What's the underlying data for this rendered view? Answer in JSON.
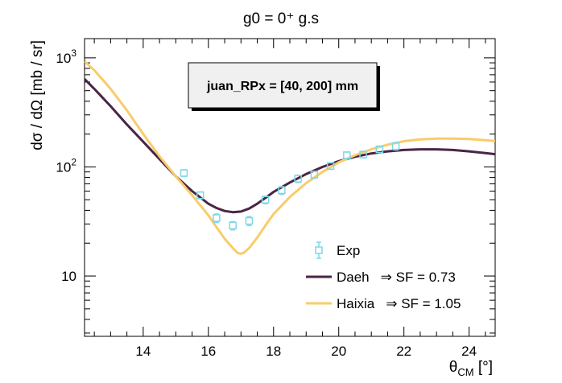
{
  "chart_data": {
    "type": "scatter",
    "title": "g0 = 0⁺ g.s",
    "xlabel": "θ",
    "xlabel_sub": "CM",
    "xlabel_unit": " [°]",
    "ylabel": "dσ / dΩ [mb / sr]",
    "xlim": [
      12.2,
      24.8
    ],
    "ylim": [
      2.8,
      1500
    ],
    "yscale": "log",
    "x_ticks": [
      14,
      16,
      18,
      20,
      22,
      24
    ],
    "y_ticks": [
      10,
      100,
      1000
    ],
    "y_tick_labels": [
      "10",
      "10",
      "10"
    ],
    "y_tick_exponents": [
      "",
      "2",
      "3"
    ],
    "grid": false,
    "legend_position": "bottom-right",
    "annotation": "juan_RPx = [40, 200] mm",
    "series": [
      {
        "name": "Exp",
        "kind": "points",
        "color": "#7fd7e8",
        "x": [
          15.25,
          15.75,
          16.25,
          16.75,
          17.25,
          17.75,
          18.25,
          18.75,
          19.25,
          19.75,
          20.25,
          20.75,
          21.25,
          21.75
        ],
        "y": [
          88,
          55,
          34,
          29,
          32,
          50,
          61,
          78,
          85,
          102,
          128,
          130,
          145,
          155
        ],
        "err": [
          6,
          4,
          3,
          2.5,
          3,
          4,
          5,
          6,
          6,
          7,
          9,
          9,
          10,
          12
        ]
      },
      {
        "name": "Daeh",
        "label_suffix": "⇒ SF = 0.73",
        "kind": "line",
        "color": "#4a2545",
        "x": [
          12.2,
          12.5,
          13,
          13.5,
          14,
          14.5,
          15,
          15.5,
          16,
          16.25,
          16.5,
          16.75,
          17,
          17.25,
          17.5,
          17.75,
          18,
          18.5,
          19,
          19.5,
          20,
          20.5,
          21,
          21.5,
          22,
          22.5,
          23,
          23.5,
          24,
          24.5,
          24.8
        ],
        "y": [
          640,
          520,
          360,
          245,
          170,
          118,
          82,
          60,
          46,
          42,
          39.5,
          38.5,
          39,
          41.5,
          46,
          52,
          59,
          72,
          86,
          100,
          113,
          124,
          133,
          139,
          143,
          145,
          145,
          143,
          139,
          134,
          131
        ]
      },
      {
        "name": "Haixia",
        "label_suffix": "⇒ SF = 1.05",
        "kind": "line",
        "color": "#f9cc6a",
        "x": [
          12.2,
          12.5,
          13,
          13.5,
          14,
          14.5,
          15,
          15.5,
          16,
          16.25,
          16.5,
          16.75,
          16.9,
          17,
          17.1,
          17.25,
          17.5,
          17.75,
          18,
          18.5,
          19,
          19.5,
          20,
          20.5,
          21,
          21.5,
          22,
          22.5,
          23,
          23.5,
          24,
          24.5,
          24.8
        ],
        "y": [
          930,
          770,
          520,
          330,
          200,
          125,
          82,
          55,
          36,
          28,
          22,
          18,
          16.3,
          16,
          16.4,
          18,
          22.5,
          29,
          37,
          53,
          71,
          90,
          110,
          128,
          145,
          160,
          172,
          179,
          182,
          182,
          180,
          176,
          173
        ]
      }
    ]
  }
}
